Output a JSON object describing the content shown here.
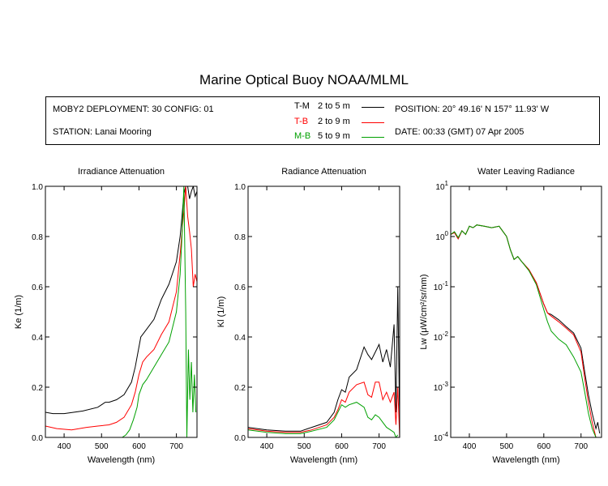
{
  "page_title": "Marine Optical Buoy NOAA/MLML",
  "info": {
    "deployment": "MOBY2 DEPLOYMENT: 30 CONFIG: 01",
    "station": "STATION: Lanai Mooring",
    "position": "POSITION: 20° 49.16' N   157° 11.93' W",
    "date": "DATE: 00:33 (GMT) 07 Apr 2005",
    "legend": [
      {
        "code": "T-M",
        "range": "2 to 5  m",
        "color": "#000000"
      },
      {
        "code": "T-B",
        "range": "2 to 9  m",
        "color": "#ff0000"
      },
      {
        "code": "M-B",
        "range": "5 to 9  m",
        "color": "#00a000"
      }
    ]
  },
  "chart_data": [
    {
      "type": "line",
      "title": "Irradiance Attenuation",
      "xlabel": "Wavelength (nm)",
      "ylabel": "Ke  (1/m)",
      "xlim": [
        350,
        755
      ],
      "ylim": [
        0,
        1.0
      ],
      "x_ticks": [
        400,
        500,
        600,
        700
      ],
      "y_ticks": [
        "0.0",
        "0.2",
        "0.4",
        "0.6",
        "0.8",
        "1.0"
      ],
      "y_tick_values": [
        0,
        0.2,
        0.4,
        0.6,
        0.8,
        1.0
      ],
      "series": [
        {
          "name": "T-M",
          "color": "#000000",
          "x": [
            350,
            370,
            400,
            450,
            490,
            510,
            520,
            540,
            560,
            580,
            590,
            600,
            605,
            610,
            620,
            640,
            660,
            680,
            700,
            710,
            715,
            720,
            725,
            730,
            735,
            740,
            745,
            750,
            755
          ],
          "y": [
            0.1,
            0.095,
            0.095,
            0.105,
            0.12,
            0.14,
            0.14,
            0.15,
            0.17,
            0.22,
            0.28,
            0.36,
            0.4,
            0.41,
            0.43,
            0.47,
            0.55,
            0.61,
            0.7,
            0.8,
            0.88,
            0.97,
            1.0,
            1.0,
            0.95,
            0.98,
            1.0,
            0.96,
            0.98
          ]
        },
        {
          "name": "T-B",
          "color": "#ff0000",
          "x": [
            350,
            380,
            420,
            460,
            490,
            520,
            540,
            560,
            580,
            590,
            600,
            610,
            620,
            640,
            660,
            680,
            700,
            710,
            720,
            725,
            730,
            735,
            740,
            745,
            750,
            755
          ],
          "y": [
            0.045,
            0.035,
            0.03,
            0.04,
            0.045,
            0.05,
            0.06,
            0.08,
            0.13,
            0.18,
            0.25,
            0.3,
            0.32,
            0.35,
            0.41,
            0.46,
            0.58,
            0.73,
            0.9,
            1.0,
            0.88,
            0.82,
            0.75,
            0.6,
            0.65,
            0.62
          ]
        },
        {
          "name": "M-B",
          "color": "#00a000",
          "x": [
            555,
            565,
            575,
            585,
            595,
            600,
            610,
            620,
            640,
            660,
            680,
            700,
            710,
            715,
            720,
            725,
            728,
            732,
            736,
            740,
            744,
            748,
            752
          ],
          "y": [
            0.0,
            0.01,
            0.03,
            0.07,
            0.12,
            0.17,
            0.21,
            0.23,
            0.28,
            0.33,
            0.38,
            0.5,
            0.65,
            0.8,
            1.0,
            0.5,
            0.0,
            0.35,
            0.15,
            0.3,
            0.1,
            0.25,
            0.1
          ]
        }
      ]
    },
    {
      "type": "line",
      "title": "Radiance Attenuation",
      "xlabel": "Wavelength (nm)",
      "ylabel": "Kl  (1/m)",
      "xlim": [
        350,
        755
      ],
      "ylim": [
        0,
        1.0
      ],
      "x_ticks": [
        400,
        500,
        600,
        700
      ],
      "y_ticks": [
        "0.0",
        "0.2",
        "0.4",
        "0.6",
        "0.8",
        "1.0"
      ],
      "y_tick_values": [
        0,
        0.2,
        0.4,
        0.6,
        0.8,
        1.0
      ],
      "series": [
        {
          "name": "T-M",
          "color": "#000000",
          "x": [
            350,
            400,
            450,
            490,
            520,
            560,
            580,
            590,
            600,
            610,
            620,
            640,
            660,
            670,
            680,
            690,
            700,
            710,
            720,
            730,
            740,
            745,
            750,
            755
          ],
          "y": [
            0.04,
            0.03,
            0.025,
            0.025,
            0.04,
            0.06,
            0.1,
            0.15,
            0.19,
            0.18,
            0.24,
            0.27,
            0.36,
            0.33,
            0.31,
            0.34,
            0.37,
            0.3,
            0.35,
            0.28,
            0.45,
            0.1,
            0.6,
            0.05
          ]
        },
        {
          "name": "T-B",
          "color": "#ff0000",
          "x": [
            350,
            400,
            450,
            490,
            520,
            560,
            580,
            590,
            600,
            610,
            620,
            640,
            660,
            670,
            680,
            690,
            700,
            710,
            720,
            730,
            740,
            745,
            750,
            755
          ],
          "y": [
            0.035,
            0.025,
            0.02,
            0.02,
            0.03,
            0.05,
            0.08,
            0.11,
            0.15,
            0.14,
            0.18,
            0.21,
            0.22,
            0.17,
            0.16,
            0.22,
            0.22,
            0.15,
            0.18,
            0.14,
            0.18,
            0.05,
            0.2,
            0.0
          ]
        },
        {
          "name": "M-B",
          "color": "#00a000",
          "x": [
            350,
            400,
            450,
            490,
            520,
            560,
            580,
            590,
            600,
            610,
            620,
            640,
            660,
            670,
            680,
            690,
            700,
            710,
            720,
            730,
            740,
            745,
            750
          ],
          "y": [
            0.03,
            0.02,
            0.015,
            0.015,
            0.025,
            0.04,
            0.07,
            0.1,
            0.13,
            0.12,
            0.13,
            0.14,
            0.12,
            0.08,
            0.07,
            0.09,
            0.08,
            0.06,
            0.04,
            0.03,
            0.02,
            0.0,
            0.01
          ]
        }
      ]
    },
    {
      "type": "line",
      "title": "Water Leaving Radiance",
      "xlabel": "Wavelength (nm)",
      "ylabel": "Lw  (μW/cm²/sr/nm)",
      "xlim": [
        350,
        755
      ],
      "ylim": [
        0.0001,
        10
      ],
      "log_y": true,
      "x_ticks": [
        400,
        500,
        600,
        700
      ],
      "y_ticks": [
        "10⁻⁴",
        "10⁻³",
        "10⁻²",
        "10⁻¹",
        "10⁰",
        "10¹"
      ],
      "y_tick_values": [
        0.0001,
        0.001,
        0.01,
        0.1,
        1,
        10
      ],
      "series": [
        {
          "name": "T-M",
          "color": "#000000",
          "x": [
            350,
            360,
            370,
            380,
            390,
            400,
            410,
            420,
            440,
            460,
            480,
            500,
            510,
            520,
            530,
            540,
            560,
            580,
            600,
            610,
            620,
            640,
            660,
            680,
            700,
            710,
            720,
            730,
            740,
            745,
            750
          ],
          "y": [
            1.1,
            1.2,
            0.9,
            1.3,
            1.1,
            1.6,
            1.5,
            1.7,
            1.6,
            1.5,
            1.6,
            1.0,
            0.55,
            0.35,
            0.4,
            0.32,
            0.22,
            0.12,
            0.045,
            0.03,
            0.028,
            0.022,
            0.016,
            0.012,
            0.006,
            0.002,
            0.0007,
            0.0003,
            0.00015,
            0.0002,
            0.00012
          ]
        },
        {
          "name": "T-B",
          "color": "#ff0000",
          "x": [
            350,
            360,
            370,
            380,
            390,
            400,
            410,
            420,
            440,
            460,
            480,
            500,
            510,
            520,
            530,
            540,
            560,
            580,
            600,
            610,
            620,
            640,
            660,
            680,
            700,
            710,
            720,
            730,
            740
          ],
          "y": [
            1.1,
            1.2,
            0.9,
            1.3,
            1.1,
            1.6,
            1.5,
            1.7,
            1.6,
            1.5,
            1.6,
            1.0,
            0.55,
            0.35,
            0.4,
            0.32,
            0.22,
            0.12,
            0.045,
            0.03,
            0.026,
            0.02,
            0.015,
            0.011,
            0.005,
            0.0015,
            0.0005,
            0.0002,
            0.0001
          ]
        },
        {
          "name": "M-B",
          "color": "#00a000",
          "x": [
            350,
            360,
            370,
            380,
            390,
            400,
            410,
            420,
            440,
            460,
            480,
            500,
            510,
            520,
            530,
            540,
            560,
            580,
            600,
            610,
            620,
            640,
            660,
            680,
            700,
            710,
            720,
            730,
            740
          ],
          "y": [
            1.1,
            1.25,
            0.95,
            1.3,
            1.1,
            1.6,
            1.5,
            1.7,
            1.6,
            1.5,
            1.6,
            1.0,
            0.55,
            0.35,
            0.4,
            0.32,
            0.21,
            0.11,
            0.035,
            0.02,
            0.013,
            0.009,
            0.007,
            0.004,
            0.002,
            0.0008,
            0.0003,
            0.00015,
            0.0001
          ]
        }
      ]
    }
  ]
}
